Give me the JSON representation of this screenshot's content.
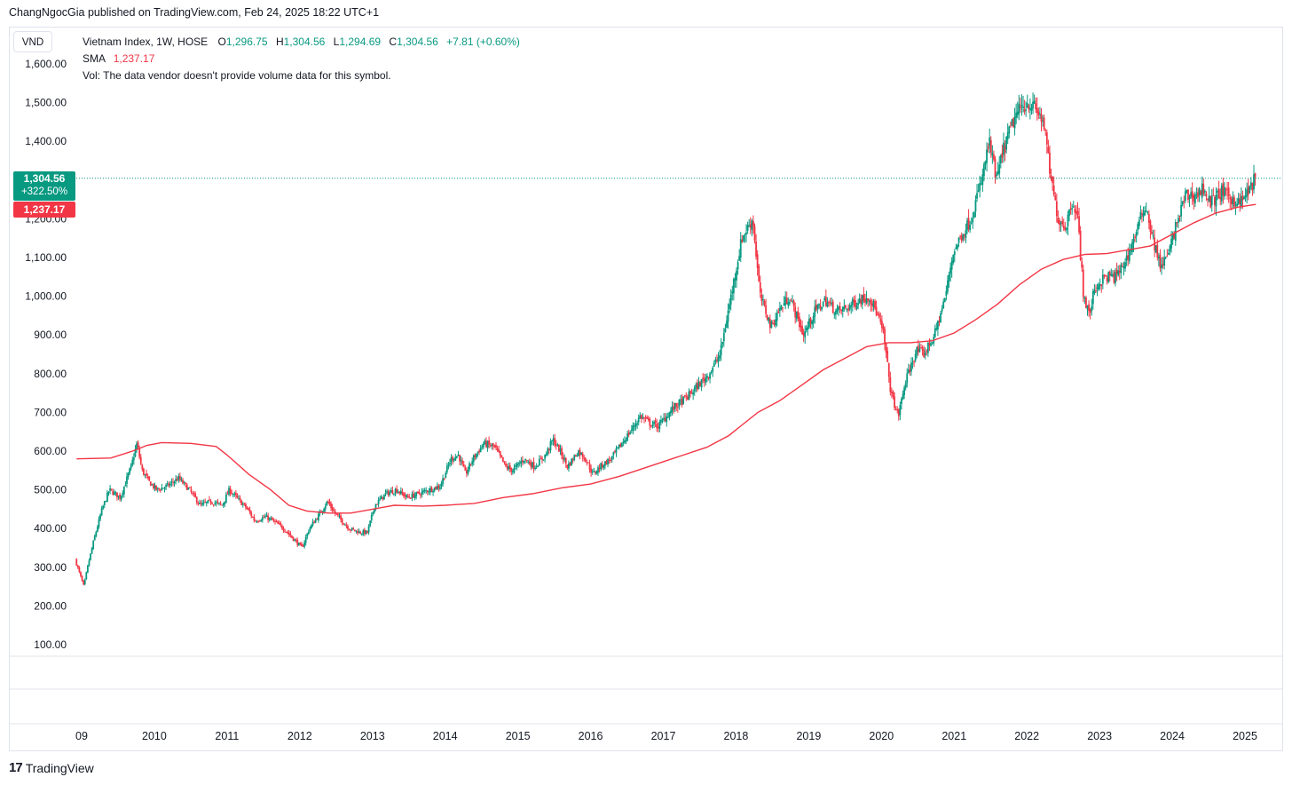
{
  "publisher": {
    "text": "ChangNgocGia published on TradingView.com, Feb 24, 2025 18:22 UTC+1"
  },
  "currency": "VND",
  "legend": {
    "symbol": "Vietnam Index, 1W, HOSE",
    "o_label": "O",
    "o_value": "1,296.75",
    "h_label": "H",
    "h_value": "1,304.56",
    "l_label": "L",
    "l_value": "1,294.69",
    "c_label": "C",
    "c_value": "1,304.56",
    "change": "+7.81 (+0.60%)",
    "sma_label": "SMA",
    "sma_value": "1,237.17",
    "vol_note": "Vol: The data vendor doesn't provide volume data for this symbol."
  },
  "price_tag": {
    "price": "1,304.56",
    "change_pct": "+322.50%"
  },
  "sma_tag": "1,237.17",
  "brand": {
    "logo": "17",
    "name": "TradingView"
  },
  "colors": {
    "up": "#089981",
    "down": "#f23645",
    "sma": "#f23645",
    "grid": "#e0e3eb",
    "text": "#131722"
  },
  "chart_data": {
    "type": "line",
    "ylim": [
      100,
      1600
    ],
    "y_ticks": [
      {
        "value": 1600,
        "label": "1,600.00"
      },
      {
        "value": 1500,
        "label": "1,500.00"
      },
      {
        "value": 1400,
        "label": "1,400.00"
      },
      {
        "value": 1200,
        "label": "1,200.00"
      },
      {
        "value": 1100,
        "label": "1,100.00"
      },
      {
        "value": 1000,
        "label": "1,000.00"
      },
      {
        "value": 900,
        "label": "900.00"
      },
      {
        "value": 800,
        "label": "800.00"
      },
      {
        "value": 700,
        "label": "700.00"
      },
      {
        "value": 600,
        "label": "600.00"
      },
      {
        "value": 500,
        "label": "500.00"
      },
      {
        "value": 400,
        "label": "400.00"
      },
      {
        "value": 300,
        "label": "300.00"
      },
      {
        "value": 200,
        "label": "200.00"
      },
      {
        "value": 100,
        "label": "100.00"
      }
    ],
    "x_ticks": [
      {
        "t": 2009.0,
        "label": "09"
      },
      {
        "t": 2010.0,
        "label": "2010"
      },
      {
        "t": 2011.0,
        "label": "2011"
      },
      {
        "t": 2012.0,
        "label": "2012"
      },
      {
        "t": 2013.0,
        "label": "2013"
      },
      {
        "t": 2014.0,
        "label": "2014"
      },
      {
        "t": 2015.0,
        "label": "2015"
      },
      {
        "t": 2016.0,
        "label": "2016"
      },
      {
        "t": 2017.0,
        "label": "2017"
      },
      {
        "t": 2018.0,
        "label": "2018"
      },
      {
        "t": 2019.0,
        "label": "2019"
      },
      {
        "t": 2020.0,
        "label": "2020"
      },
      {
        "t": 2021.0,
        "label": "2021"
      },
      {
        "t": 2022.0,
        "label": "2022"
      },
      {
        "t": 2023.0,
        "label": "2023"
      },
      {
        "t": 2024.0,
        "label": "2024"
      },
      {
        "t": 2025.0,
        "label": "2025"
      }
    ],
    "last_price": 1304.56,
    "price_series": [
      [
        2008.93,
        320
      ],
      [
        2009.05,
        250
      ],
      [
        2009.1,
        300
      ],
      [
        2009.2,
        380
      ],
      [
        2009.3,
        450
      ],
      [
        2009.4,
        500
      ],
      [
        2009.55,
        480
      ],
      [
        2009.7,
        560
      ],
      [
        2009.78,
        620
      ],
      [
        2009.85,
        550
      ],
      [
        2009.95,
        520
      ],
      [
        2010.05,
        500
      ],
      [
        2010.2,
        510
      ],
      [
        2010.35,
        530
      ],
      [
        2010.5,
        500
      ],
      [
        2010.65,
        460
      ],
      [
        2010.8,
        470
      ],
      [
        2010.95,
        460
      ],
      [
        2011.05,
        500
      ],
      [
        2011.15,
        480
      ],
      [
        2011.3,
        450
      ],
      [
        2011.4,
        420
      ],
      [
        2011.55,
        430
      ],
      [
        2011.65,
        420
      ],
      [
        2011.8,
        400
      ],
      [
        2011.95,
        370
      ],
      [
        2012.05,
        350
      ],
      [
        2012.15,
        400
      ],
      [
        2012.3,
        440
      ],
      [
        2012.4,
        470
      ],
      [
        2012.5,
        440
      ],
      [
        2012.6,
        420
      ],
      [
        2012.7,
        400
      ],
      [
        2012.85,
        390
      ],
      [
        2012.95,
        390
      ],
      [
        2013.05,
        460
      ],
      [
        2013.2,
        490
      ],
      [
        2013.35,
        500
      ],
      [
        2013.5,
        480
      ],
      [
        2013.65,
        490
      ],
      [
        2013.8,
        500
      ],
      [
        2013.95,
        510
      ],
      [
        2014.1,
        580
      ],
      [
        2014.2,
        590
      ],
      [
        2014.3,
        540
      ],
      [
        2014.4,
        580
      ],
      [
        2014.55,
        620
      ],
      [
        2014.7,
        610
      ],
      [
        2014.85,
        560
      ],
      [
        2014.95,
        550
      ],
      [
        2015.1,
        580
      ],
      [
        2015.25,
        560
      ],
      [
        2015.4,
        590
      ],
      [
        2015.5,
        630
      ],
      [
        2015.6,
        600
      ],
      [
        2015.7,
        560
      ],
      [
        2015.85,
        600
      ],
      [
        2015.95,
        580
      ],
      [
        2016.05,
        540
      ],
      [
        2016.15,
        560
      ],
      [
        2016.3,
        580
      ],
      [
        2016.45,
        620
      ],
      [
        2016.6,
        660
      ],
      [
        2016.7,
        690
      ],
      [
        2016.85,
        670
      ],
      [
        2016.95,
        665
      ],
      [
        2017.15,
        710
      ],
      [
        2017.35,
        740
      ],
      [
        2017.5,
        770
      ],
      [
        2017.65,
        800
      ],
      [
        2017.8,
        850
      ],
      [
        2017.9,
        950
      ],
      [
        2018.0,
        1050
      ],
      [
        2018.1,
        1150
      ],
      [
        2018.25,
        1200
      ],
      [
        2018.35,
        1000
      ],
      [
        2018.45,
        950
      ],
      [
        2018.5,
        920
      ],
      [
        2018.6,
        960
      ],
      [
        2018.75,
        1000
      ],
      [
        2018.85,
        950
      ],
      [
        2018.95,
        900
      ],
      [
        2019.1,
        960
      ],
      [
        2019.25,
        990
      ],
      [
        2019.4,
        960
      ],
      [
        2019.55,
        970
      ],
      [
        2019.7,
        990
      ],
      [
        2019.85,
        1000
      ],
      [
        2019.95,
        960
      ],
      [
        2020.05,
        900
      ],
      [
        2020.15,
        750
      ],
      [
        2020.25,
        690
      ],
      [
        2020.35,
        780
      ],
      [
        2020.5,
        860
      ],
      [
        2020.6,
        850
      ],
      [
        2020.75,
        900
      ],
      [
        2020.9,
        1000
      ],
      [
        2021.0,
        1110
      ],
      [
        2021.1,
        1150
      ],
      [
        2021.25,
        1200
      ],
      [
        2021.4,
        1300
      ],
      [
        2021.5,
        1400
      ],
      [
        2021.6,
        1300
      ],
      [
        2021.7,
        1380
      ],
      [
        2021.85,
        1460
      ],
      [
        2021.95,
        1490
      ],
      [
        2022.05,
        1500
      ],
      [
        2022.15,
        1480
      ],
      [
        2022.25,
        1450
      ],
      [
        2022.35,
        1300
      ],
      [
        2022.45,
        1200
      ],
      [
        2022.55,
        1180
      ],
      [
        2022.65,
        1250
      ],
      [
        2022.72,
        1200
      ],
      [
        2022.8,
        1000
      ],
      [
        2022.88,
        950
      ],
      [
        2022.95,
        1020
      ],
      [
        2023.1,
        1050
      ],
      [
        2023.25,
        1050
      ],
      [
        2023.4,
        1100
      ],
      [
        2023.55,
        1180
      ],
      [
        2023.65,
        1240
      ],
      [
        2023.75,
        1150
      ],
      [
        2023.85,
        1080
      ],
      [
        2023.95,
        1100
      ],
      [
        2024.1,
        1200
      ],
      [
        2024.2,
        1260
      ],
      [
        2024.35,
        1260
      ],
      [
        2024.45,
        1280
      ],
      [
        2024.55,
        1240
      ],
      [
        2024.7,
        1270
      ],
      [
        2024.85,
        1250
      ],
      [
        2024.95,
        1240
      ],
      [
        2025.1,
        1280
      ],
      [
        2025.15,
        1304.56
      ]
    ],
    "sma_series": [
      [
        2008.93,
        580
      ],
      [
        2009.4,
        582
      ],
      [
        2009.7,
        600
      ],
      [
        2009.9,
        615
      ],
      [
        2010.1,
        622
      ],
      [
        2010.5,
        620
      ],
      [
        2010.85,
        612
      ],
      [
        2011.0,
        590
      ],
      [
        2011.3,
        540
      ],
      [
        2011.6,
        500
      ],
      [
        2011.85,
        460
      ],
      [
        2012.1,
        445
      ],
      [
        2012.4,
        440
      ],
      [
        2012.7,
        440
      ],
      [
        2013.0,
        450
      ],
      [
        2013.3,
        460
      ],
      [
        2013.7,
        458
      ],
      [
        2014.0,
        460
      ],
      [
        2014.4,
        465
      ],
      [
        2014.8,
        480
      ],
      [
        2015.2,
        490
      ],
      [
        2015.6,
        505
      ],
      [
        2016.0,
        515
      ],
      [
        2016.4,
        535
      ],
      [
        2016.8,
        560
      ],
      [
        2017.2,
        585
      ],
      [
        2017.6,
        610
      ],
      [
        2017.9,
        640
      ],
      [
        2018.1,
        670
      ],
      [
        2018.3,
        700
      ],
      [
        2018.6,
        730
      ],
      [
        2018.9,
        770
      ],
      [
        2019.2,
        810
      ],
      [
        2019.5,
        840
      ],
      [
        2019.8,
        870
      ],
      [
        2020.1,
        880
      ],
      [
        2020.4,
        880
      ],
      [
        2020.7,
        885
      ],
      [
        2021.0,
        905
      ],
      [
        2021.3,
        940
      ],
      [
        2021.6,
        980
      ],
      [
        2021.9,
        1030
      ],
      [
        2022.2,
        1070
      ],
      [
        2022.5,
        1095
      ],
      [
        2022.8,
        1108
      ],
      [
        2023.1,
        1110
      ],
      [
        2023.4,
        1120
      ],
      [
        2023.7,
        1130
      ],
      [
        2024.0,
        1160
      ],
      [
        2024.3,
        1190
      ],
      [
        2024.6,
        1215
      ],
      [
        2024.9,
        1230
      ],
      [
        2025.15,
        1237.17
      ]
    ]
  }
}
